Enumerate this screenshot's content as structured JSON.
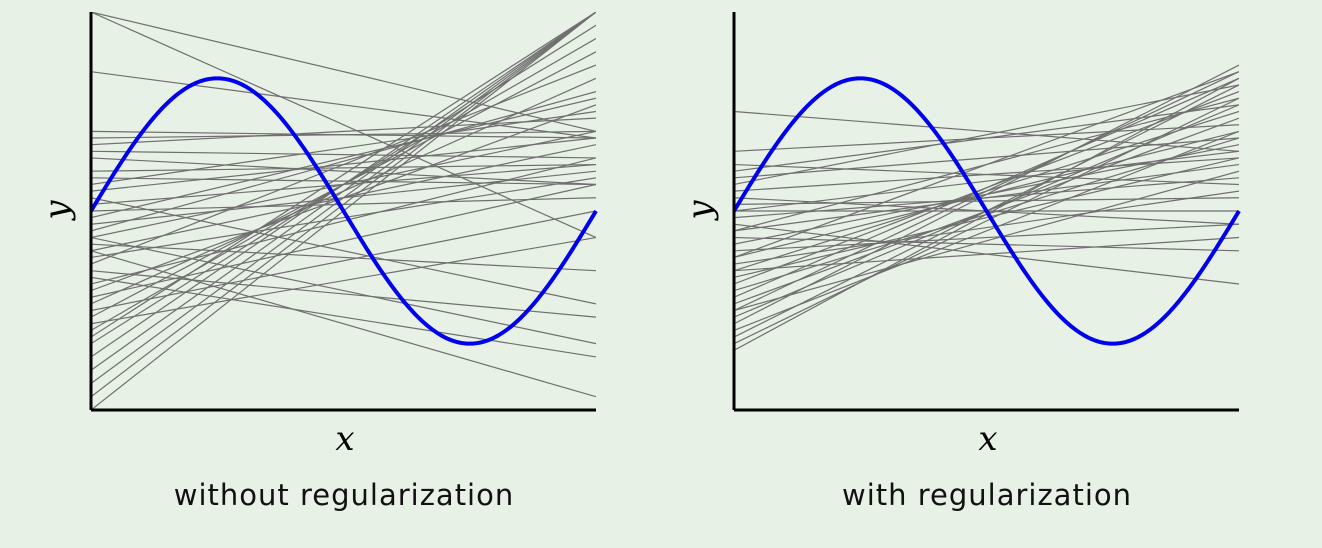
{
  "chart_data": [
    {
      "type": "line",
      "caption": "without regularization",
      "xlabel": "x",
      "ylabel": "y",
      "xlim": [
        0,
        1
      ],
      "ylim": [
        -1.5,
        1.5
      ],
      "grid": false,
      "true_function": "sin(2πx)",
      "colors": {
        "true_function": "#0000ee",
        "fits": "#6f6f6f",
        "axes": "#000000"
      },
      "fit_lines": [
        {
          "y0": 1.5,
          "y1": -0.2
        },
        {
          "y0": 1.5,
          "y1": 0.6
        },
        {
          "y0": 1.05,
          "y1": 0.55
        },
        {
          "y0": 0.6,
          "y1": 0.55
        },
        {
          "y0": 0.55,
          "y1": 0.6
        },
        {
          "y0": 0.45,
          "y1": 0.4
        },
        {
          "y0": 0.5,
          "y1": 0.7
        },
        {
          "y0": 0.4,
          "y1": 0.2
        },
        {
          "y0": 0.3,
          "y1": 0.35
        },
        {
          "y0": 0.0,
          "y1": 0.1
        },
        {
          "y0": 0.05,
          "y1": 0.35
        },
        {
          "y0": -0.1,
          "y1": 0.3
        },
        {
          "y0": -0.2,
          "y1": 0.6
        },
        {
          "y0": -0.3,
          "y1": 0.5
        },
        {
          "y0": -0.35,
          "y1": 0.25
        },
        {
          "y0": -0.25,
          "y1": -0.45
        },
        {
          "y0": -0.45,
          "y1": -0.8
        },
        {
          "y0": -0.5,
          "y1": -1.1
        },
        {
          "y0": -0.2,
          "y1": -1.0
        },
        {
          "y0": -0.3,
          "y1": -1.4
        },
        {
          "y0": 0.1,
          "y1": -0.7
        },
        {
          "y0": -0.6,
          "y1": 0.8
        },
        {
          "y0": -0.7,
          "y1": 1.0
        },
        {
          "y0": -0.8,
          "y1": 1.2
        },
        {
          "y0": -0.9,
          "y1": 1.3
        },
        {
          "y0": -1.0,
          "y1": 1.4
        },
        {
          "y0": -1.1,
          "y1": 1.5
        },
        {
          "y0": -1.2,
          "y1": 1.5
        },
        {
          "y0": -1.4,
          "y1": 1.5
        },
        {
          "y0": -1.5,
          "y1": 1.5
        },
        {
          "y0": -0.4,
          "y1": 1.1
        },
        {
          "y0": -0.15,
          "y1": 0.9
        },
        {
          "y0": -0.55,
          "y1": 0.4
        },
        {
          "y0": -0.65,
          "y1": 0.2
        },
        {
          "y0": -0.75,
          "y1": 0.0
        },
        {
          "y0": -0.85,
          "y1": -0.2
        },
        {
          "y0": 0.15,
          "y1": 0.55
        },
        {
          "y0": 0.2,
          "y1": 0.75
        },
        {
          "y0": -0.05,
          "y1": 0.85
        },
        {
          "y0": 0.25,
          "y1": 0.2
        },
        {
          "y0": -1.3,
          "y1": 1.5
        },
        {
          "y0": -0.95,
          "y1": 1.5
        }
      ]
    },
    {
      "type": "line",
      "caption": "with regularization",
      "xlabel": "x",
      "ylabel": "y",
      "xlim": [
        0,
        1
      ],
      "ylim": [
        -1.5,
        1.5
      ],
      "grid": false,
      "true_function": "sin(2πx)",
      "colors": {
        "true_function": "#0000ee",
        "fits": "#6f6f6f",
        "axes": "#000000"
      },
      "fit_lines": [
        {
          "y0": 0.75,
          "y1": 0.45
        },
        {
          "y0": 0.45,
          "y1": 0.65
        },
        {
          "y0": 0.3,
          "y1": 0.8
        },
        {
          "y0": 0.25,
          "y1": 0.55
        },
        {
          "y0": 0.0,
          "y1": 0.45
        },
        {
          "y0": 0.05,
          "y1": 0.1
        },
        {
          "y0": -0.05,
          "y1": 0.25
        },
        {
          "y0": -0.15,
          "y1": 0.35
        },
        {
          "y0": -0.25,
          "y1": 0.5
        },
        {
          "y0": -0.35,
          "y1": 0.6
        },
        {
          "y0": -0.45,
          "y1": 0.75
        },
        {
          "y0": -0.55,
          "y1": 0.9
        },
        {
          "y0": -0.65,
          "y1": 1.0
        },
        {
          "y0": -0.75,
          "y1": 1.05
        },
        {
          "y0": -0.85,
          "y1": 1.1
        },
        {
          "y0": -0.95,
          "y1": 0.95
        },
        {
          "y0": -1.05,
          "y1": 1.0
        },
        {
          "y0": -0.2,
          "y1": -0.3
        },
        {
          "y0": -0.1,
          "y1": -0.55
        },
        {
          "y0": -0.3,
          "y1": -0.1
        },
        {
          "y0": -0.4,
          "y1": 0.15
        },
        {
          "y0": -0.5,
          "y1": 0.4
        },
        {
          "y0": -0.6,
          "y1": 0.55
        },
        {
          "y0": -0.7,
          "y1": 0.7
        },
        {
          "y0": -0.8,
          "y1": 0.8
        },
        {
          "y0": -0.9,
          "y1": 0.6
        },
        {
          "y0": 0.1,
          "y1": -0.1
        },
        {
          "y0": 0.35,
          "y1": 0.2
        },
        {
          "y0": 0.15,
          "y1": 0.4
        },
        {
          "y0": -0.35,
          "y1": 1.05
        },
        {
          "y0": -0.15,
          "y1": 0.85
        },
        {
          "y0": 0.2,
          "y1": 0.95
        },
        {
          "y0": -1.0,
          "y1": 0.85
        },
        {
          "y0": -0.75,
          "y1": 0.3
        },
        {
          "y0": 0.0,
          "y1": 0.0
        },
        {
          "y0": -0.45,
          "y1": -0.2
        }
      ]
    }
  ]
}
